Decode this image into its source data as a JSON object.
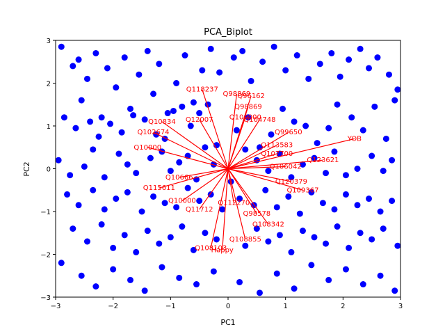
{
  "chart_data": {
    "type": "scatter",
    "title": "PCA_Biplot",
    "xlabel": "PC1",
    "ylabel": "PC2",
    "xlim": [
      -3,
      3
    ],
    "ylim": [
      -3,
      3
    ],
    "xticks": [
      "−3",
      "−2",
      "−1",
      "0",
      "1",
      "2",
      "3"
    ],
    "yticks": [
      "−3",
      "−2",
      "−1",
      "0",
      "1",
      "2",
      "3"
    ],
    "grid": false,
    "point_color": "#0000ff",
    "loading_color": "#ff0000",
    "points": {
      "x": [
        -2.9,
        -2.7,
        -2.6,
        -2.55,
        -2.45,
        -2.3,
        -2.2,
        -2.1,
        -1.95,
        -1.8,
        -1.7,
        -1.55,
        -1.4,
        -1.3,
        -1.2,
        -1.05,
        -0.9,
        -0.75,
        -0.6,
        -0.45,
        -0.3,
        -0.15,
        0.1,
        0.25,
        0.4,
        0.6,
        0.8,
        1.0,
        1.2,
        1.4,
        1.6,
        1.8,
        1.95,
        2.1,
        2.3,
        2.45,
        2.6,
        2.8,
        2.95,
        -2.85,
        -2.65,
        -2.4,
        -2.25,
        -2.05,
        -1.85,
        -1.65,
        -1.45,
        -1.25,
        -1.1,
        -0.95,
        -0.8,
        -0.65,
        -0.5,
        -0.35,
        -0.2,
        0.15,
        0.35,
        0.55,
        0.75,
        0.95,
        1.15,
        1.35,
        1.55,
        1.75,
        1.9,
        2.15,
        2.35,
        2.55,
        2.75,
        2.9,
        -2.95,
        -2.75,
        -2.5,
        -2.35,
        -2.15,
        -1.9,
        -1.75,
        -1.6,
        -1.35,
        -1.15,
        -1.0,
        -0.85,
        -0.7,
        -0.55,
        -0.4,
        -0.25,
        0.05,
        0.3,
        0.5,
        0.7,
        0.9,
        1.1,
        1.3,
        1.5,
        1.7,
        1.85,
        2.05,
        2.25,
        2.5,
        2.7,
        2.85,
        -2.8,
        -2.6,
        -2.35,
        -2.15,
        -1.95,
        -1.75,
        -1.5,
        -1.3,
        -1.1,
        -0.9,
        -0.7,
        -0.5,
        -0.3,
        -0.1,
        0.2,
        0.45,
        0.65,
        0.85,
        1.05,
        1.25,
        1.45,
        1.65,
        1.85,
        2.05,
        2.25,
        2.45,
        2.65,
        2.85,
        -2.7,
        -2.45,
        -2.2,
        -2.0,
        -1.8,
        -1.6,
        -1.4,
        -1.2,
        -1.0,
        -0.8,
        -0.6,
        -0.4,
        -0.2,
        0.3,
        0.5,
        0.7,
        0.9,
        1.1,
        1.3,
        1.5,
        1.7,
        1.9,
        2.1,
        2.3,
        2.5,
        2.7,
        2.95,
        -2.9,
        -2.55,
        -2.3,
        -2.0,
        -1.7,
        -1.45,
        -1.15,
        -0.85,
        -0.55,
        -0.25,
        0.2,
        0.55,
        0.85,
        1.15,
        1.45,
        1.75,
        2.05,
        2.35,
        2.65,
        2.9
      ],
      "y": [
        2.85,
        2.4,
        2.55,
        1.6,
        2.1,
        2.7,
        1.2,
        2.35,
        1.9,
        2.6,
        1.4,
        2.2,
        2.75,
        1.75,
        2.45,
        1.3,
        2.0,
        2.65,
        1.55,
        2.3,
        2.8,
        2.25,
        2.6,
        2.75,
        2.05,
        2.5,
        2.85,
        2.3,
        2.65,
        2.1,
        2.45,
        2.7,
        2.15,
        2.55,
        2.8,
        2.35,
        2.6,
        2.2,
        1.85,
        1.2,
        0.95,
        1.1,
        0.75,
        1.05,
        0.85,
        1.25,
        1.15,
        0.8,
        0.7,
        1.35,
        1.45,
        1.0,
        1.3,
        1.5,
        0.55,
        0.9,
        1.2,
        0.5,
        0.8,
        1.4,
        1.1,
        1.0,
        0.6,
        0.95,
        1.5,
        1.2,
        0.9,
        1.45,
        0.7,
        1.6,
        0.2,
        -0.15,
        0.05,
        0.45,
        -0.2,
        0.35,
        0.1,
        -0.1,
        0.25,
        0.4,
        -0.05,
        0.15,
        0.3,
        -0.25,
        0.5,
        0.1,
        -0.3,
        0.45,
        0.2,
        -0.05,
        0.35,
        -0.2,
        0.1,
        0.25,
        -0.1,
        0.4,
        -0.15,
        0.0,
        0.3,
        -0.05,
        0.2,
        -0.6,
        -0.85,
        -0.5,
        -0.95,
        -0.7,
        -0.55,
        -1.0,
        -0.65,
        -0.8,
        -0.9,
        -0.45,
        -0.75,
        -0.6,
        -0.95,
        -0.7,
        -0.85,
        -0.5,
        -0.9,
        -0.65,
        -1.05,
        -0.55,
        -0.8,
        -0.95,
        -0.6,
        -0.85,
        -0.7,
        -1.0,
        -0.75,
        -1.4,
        -1.7,
        -1.3,
        -1.85,
        -1.55,
        -1.95,
        -1.45,
        -1.75,
        -1.6,
        -1.35,
        -1.9,
        -1.5,
        -1.65,
        -1.8,
        -1.4,
        -1.7,
        -1.55,
        -1.95,
        -1.45,
        -1.6,
        -1.75,
        -1.35,
        -1.85,
        -1.5,
        -1.65,
        -1.4,
        -1.8,
        -2.2,
        -2.5,
        -2.75,
        -2.35,
        -2.6,
        -2.85,
        -2.3,
        -2.55,
        -2.7,
        -2.4,
        -2.65,
        -2.9,
        -2.45,
        -2.8,
        -2.25,
        -2.6,
        -2.35,
        -2.7,
        -2.5,
        -2.85
      ]
    },
    "loadings": [
      {
        "label": "Q118237",
        "x": -0.45,
        "y": 1.85
      },
      {
        "label": "Q98869",
        "x": 0.15,
        "y": 1.75
      },
      {
        "label": "Q96162",
        "x": 0.4,
        "y": 1.7
      },
      {
        "label": "Q98869",
        "x": 0.35,
        "y": 1.45
      },
      {
        "label": "Q10834",
        "x": -1.15,
        "y": 1.1
      },
      {
        "label": "Q12007",
        "x": -0.5,
        "y": 1.15
      },
      {
        "label": "Q100000",
        "x": 0.3,
        "y": 1.2
      },
      {
        "label": "Q104748",
        "x": 0.55,
        "y": 1.15
      },
      {
        "label": "Q102674",
        "x": -1.3,
        "y": 0.85
      },
      {
        "label": "Q99650",
        "x": 1.05,
        "y": 0.85
      },
      {
        "label": "Q113583",
        "x": 0.85,
        "y": 0.55
      },
      {
        "label": "YOB",
        "x": 2.2,
        "y": 0.7
      },
      {
        "label": "Q10000",
        "x": -1.4,
        "y": 0.5
      },
      {
        "label": "Q107700",
        "x": 0.85,
        "y": 0.35
      },
      {
        "label": "Q123621",
        "x": 1.65,
        "y": 0.2
      },
      {
        "label": "Q106042",
        "x": 1.0,
        "y": 0.05
      },
      {
        "label": "Q10666",
        "x": -0.85,
        "y": -0.2
      },
      {
        "label": "Q115611",
        "x": -1.2,
        "y": -0.45
      },
      {
        "label": "Q120379",
        "x": 1.1,
        "y": -0.3
      },
      {
        "label": "Q109367",
        "x": 1.3,
        "y": -0.5
      },
      {
        "label": "Q10000",
        "x": -0.8,
        "y": -0.75
      },
      {
        "label": "Q112270",
        "x": 0.1,
        "y": -0.8
      },
      {
        "label": "Q98578",
        "x": 0.5,
        "y": -1.05
      },
      {
        "label": "Q11712",
        "x": -0.5,
        "y": -0.95
      },
      {
        "label": "Q108342",
        "x": 0.7,
        "y": -1.3
      },
      {
        "label": "Q108855",
        "x": 0.3,
        "y": -1.65
      },
      {
        "label": "Q108103",
        "x": -0.3,
        "y": -1.85
      },
      {
        "label": "Happy",
        "x": -0.1,
        "y": -1.9
      }
    ]
  }
}
